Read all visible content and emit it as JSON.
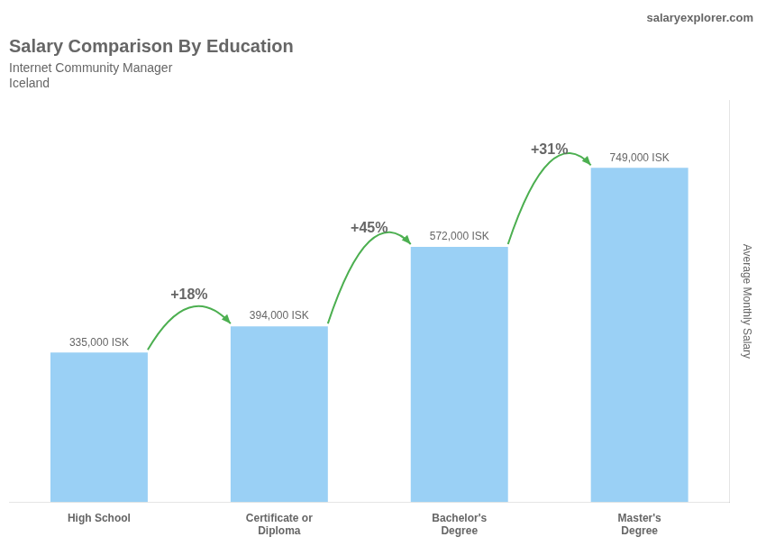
{
  "chart_data": {
    "type": "bar",
    "title": "Salary Comparison By Education",
    "subtitle": [
      "Internet Community Manager",
      "Iceland"
    ],
    "source": "salaryexplorer.com",
    "ylabel": "Average Monthly Salary",
    "categories": [
      "High School",
      "Certificate or\nDiploma",
      "Bachelor's\nDegree",
      "Master's\nDegree"
    ],
    "values": [
      335000,
      394000,
      572000,
      749000
    ],
    "value_labels": [
      "335,000 ISK",
      "394,000 ISK",
      "572,000 ISK",
      "749,000 ISK"
    ],
    "data_labels": true,
    "annotations": [
      "+18%",
      "+45%",
      "+31%"
    ],
    "ylim": [
      0,
      900000
    ],
    "grid": false,
    "tick_labels": "x"
  }
}
